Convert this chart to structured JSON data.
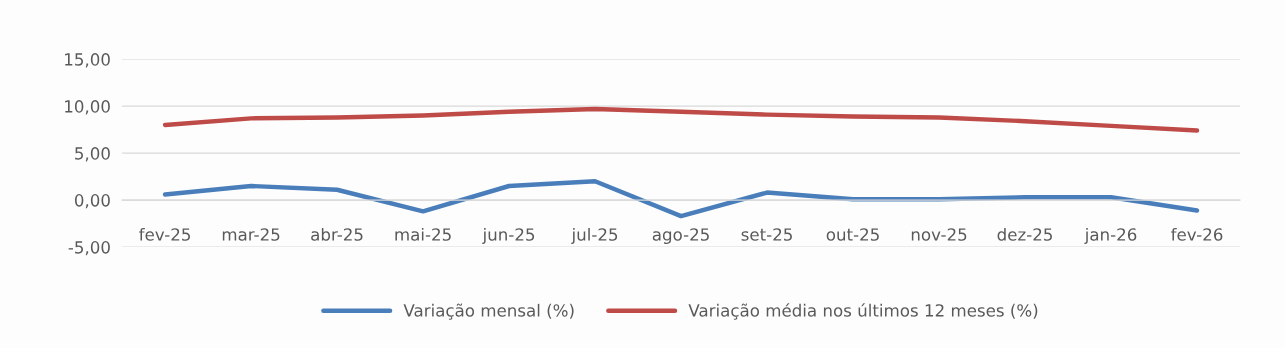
{
  "chart_data": {
    "type": "line",
    "categories": [
      "fev-25",
      "mar-25",
      "abr-25",
      "mai-25",
      "jun-25",
      "jul-25",
      "ago-25",
      "set-25",
      "out-25",
      "nov-25",
      "dez-25",
      "jan-26",
      "fev-26"
    ],
    "series": [
      {
        "name": "Variação mensal (%)",
        "color": "#4a7ebb",
        "values": [
          0.6,
          1.5,
          1.1,
          -1.2,
          1.5,
          2.0,
          -1.7,
          0.8,
          0.1,
          0.1,
          0.3,
          0.3,
          -1.1
        ]
      },
      {
        "name": "Variação média nos últimos 12 meses (%)",
        "color": "#be4b48",
        "values": [
          8.0,
          8.7,
          8.8,
          9.0,
          9.4,
          9.7,
          9.4,
          9.1,
          8.9,
          8.8,
          8.4,
          7.9,
          7.4
        ]
      }
    ],
    "ylim": [
      -5,
      15
    ],
    "yticks": [
      {
        "value": -5,
        "label": "-5,00"
      },
      {
        "value": 0,
        "label": "0,00"
      },
      {
        "value": 5,
        "label": "5,00"
      },
      {
        "value": 10,
        "label": "10,00"
      },
      {
        "value": 15,
        "label": "15,00"
      }
    ],
    "grid": "y",
    "legend": "bottom",
    "marker": "none",
    "line_style": "solid"
  }
}
